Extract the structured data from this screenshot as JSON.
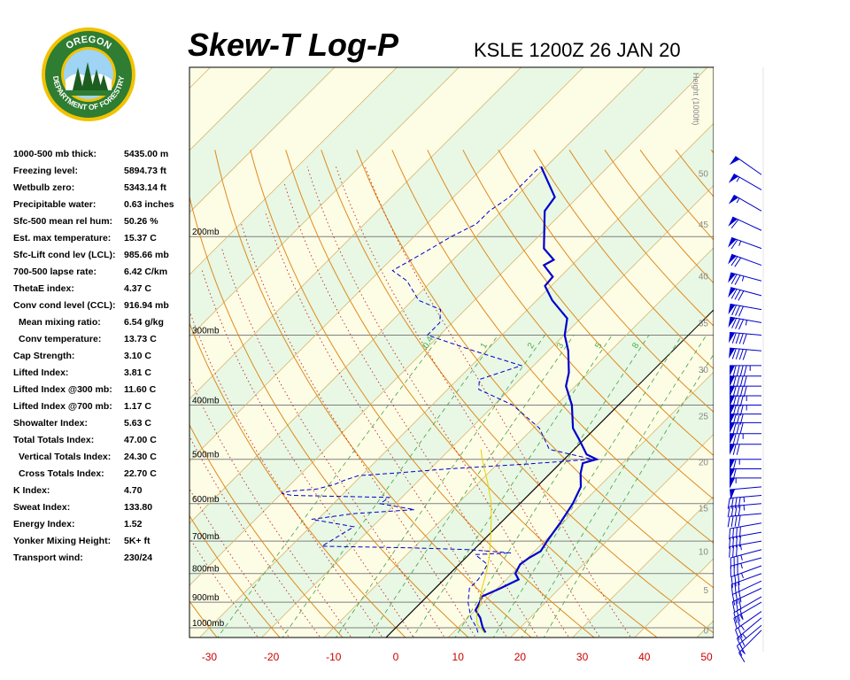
{
  "title": "Skew-T Log-P",
  "station_time": "KSLE 1200Z 26 JAN 20",
  "logo": {
    "text_top": "OREGON",
    "text_bottom": "DEPARTMENT OF FORESTRY",
    "colors": {
      "ring": "#2e7d32",
      "rim": "#f2c200",
      "sky": "#9fd4f5",
      "tree": "#1b5e20"
    }
  },
  "indices": [
    {
      "label": "1000-500 mb thick:",
      "value": "5435.00 m",
      "indent": false
    },
    {
      "label": "Freezing level:",
      "value": "5894.73 ft",
      "indent": false
    },
    {
      "label": "Wetbulb zero:",
      "value": "5343.14 ft",
      "indent": false
    },
    {
      "label": "Precipitable water:",
      "value": "0.63 inches",
      "indent": false
    },
    {
      "label": "Sfc-500 mean rel hum:",
      "value": "50.26 %",
      "indent": false
    },
    {
      "label": "Est. max temperature:",
      "value": "15.37 C",
      "indent": false
    },
    {
      "label": "Sfc-Lift cond lev (LCL):",
      "value": "985.66 mb",
      "indent": false
    },
    {
      "label": "700-500 lapse rate:",
      "value": "6.42 C/km",
      "indent": false
    },
    {
      "label": "ThetaE index:",
      "value": "4.37 C",
      "indent": false
    },
    {
      "label": "Conv cond level (CCL):",
      "value": "916.94 mb",
      "indent": false
    },
    {
      "label": "Mean mixing ratio:",
      "value": "6.54 g/kg",
      "indent": true
    },
    {
      "label": "Conv temperature:",
      "value": "13.73 C",
      "indent": true
    },
    {
      "label": "Cap Strength:",
      "value": "3.10 C",
      "indent": false
    },
    {
      "label": "Lifted Index:",
      "value": "3.81 C",
      "indent": false
    },
    {
      "label": "Lifted Index @300 mb:",
      "value": "11.60 C",
      "indent": false
    },
    {
      "label": "Lifted Index @700 mb:",
      "value": "1.17 C",
      "indent": false
    },
    {
      "label": "Showalter Index:",
      "value": "5.63 C",
      "indent": false
    },
    {
      "label": "Total Totals Index:",
      "value": "47.00 C",
      "indent": false
    },
    {
      "label": "Vertical Totals Index:",
      "value": "24.30 C",
      "indent": true
    },
    {
      "label": "Cross Totals Index:",
      "value": "22.70 C",
      "indent": true
    },
    {
      "label": "K Index:",
      "value": "4.70",
      "indent": false
    },
    {
      "label": "Sweat Index:",
      "value": "133.80",
      "indent": false
    },
    {
      "label": "Energy Index:",
      "value": "1.52",
      "indent": false
    },
    {
      "label": "Yonker Mixing Height:",
      "value": "5K+ ft",
      "indent": false
    },
    {
      "label": "Transport wind:",
      "value": "230/24",
      "indent": false
    }
  ],
  "chart_data": {
    "type": "line",
    "xlabel": "",
    "ylabel": "",
    "x_range": [
      -30,
      50
    ],
    "x_ticks": [
      -30,
      -20,
      -10,
      0,
      10,
      20,
      30,
      40,
      50
    ],
    "pressure_levels": [
      {
        "p": 200,
        "label": "200mb"
      },
      {
        "p": 300,
        "label": "300mb"
      },
      {
        "p": 400,
        "label": "400mb"
      },
      {
        "p": 500,
        "label": "500mb"
      },
      {
        "p": 600,
        "label": "600mb"
      },
      {
        "p": 700,
        "label": "700mb"
      },
      {
        "p": 800,
        "label": "800mb"
      },
      {
        "p": 900,
        "label": "900mb"
      },
      {
        "p": 1000,
        "label": "1000mb"
      }
    ],
    "height_axis": {
      "label": "Height (1000ft)",
      "ticks": [
        {
          "v": 0,
          "p": 1010
        },
        {
          "v": 5,
          "p": 855
        },
        {
          "v": 10,
          "p": 730
        },
        {
          "v": 15,
          "p": 610
        },
        {
          "v": 20,
          "p": 505
        },
        {
          "v": 25,
          "p": 418
        },
        {
          "v": 30,
          "p": 345
        },
        {
          "v": 35,
          "p": 285
        },
        {
          "v": 40,
          "p": 235
        },
        {
          "v": 45,
          "p": 190
        },
        {
          "v": 50,
          "p": 154
        }
      ]
    },
    "mixing_ratio_labels": [
      "0.4",
      "1",
      "2",
      "3",
      "5",
      "8"
    ],
    "series": [
      {
        "role": "temperature",
        "color": "#0000cc",
        "points": [
          [
            1020,
            15.2
          ],
          [
            1000,
            14.0
          ],
          [
            980,
            13.0
          ],
          [
            960,
            12.0
          ],
          [
            930,
            10.0
          ],
          [
            900,
            9.4
          ],
          [
            880,
            8.8
          ],
          [
            850,
            10.5
          ],
          [
            820,
            12.0
          ],
          [
            800,
            10.5
          ],
          [
            770,
            9.8
          ],
          [
            750,
            10.2
          ],
          [
            730,
            11.0
          ],
          [
            700,
            10.4
          ],
          [
            650,
            9.6
          ],
          [
            600,
            8.5
          ],
          [
            560,
            7.1
          ],
          [
            530,
            4.9
          ],
          [
            508,
            3.6
          ],
          [
            500,
            5.2
          ],
          [
            490,
            2.8
          ],
          [
            460,
            -0.9
          ],
          [
            440,
            -3.6
          ],
          [
            400,
            -7.5
          ],
          [
            370,
            -11.5
          ],
          [
            350,
            -13.2
          ],
          [
            320,
            -16.8
          ],
          [
            300,
            -19.9
          ],
          [
            280,
            -22.2
          ],
          [
            260,
            -27.5
          ],
          [
            245,
            -31.0
          ],
          [
            236,
            -31.2
          ],
          [
            225,
            -34.5
          ],
          [
            220,
            -33.8
          ],
          [
            210,
            -37.2
          ],
          [
            180,
            -43.1
          ],
          [
            170,
            -43.7
          ],
          [
            150,
            -50.8
          ]
        ]
      },
      {
        "role": "dewpoint",
        "color": "#0000cc",
        "points": [
          [
            1020,
            14.0
          ],
          [
            1000,
            13.0
          ],
          [
            960,
            10.5
          ],
          [
            900,
            7.5
          ],
          [
            850,
            5.5
          ],
          [
            820,
            5.5
          ],
          [
            790,
            5.0
          ],
          [
            770,
            4.5
          ],
          [
            740,
            1.0
          ],
          [
            735,
            6.5
          ],
          [
            725,
            -1.0
          ],
          [
            720,
            -10.0
          ],
          [
            715,
            -25.0
          ],
          [
            660,
            -23.0
          ],
          [
            640,
            -31.0
          ],
          [
            625,
            -25.0
          ],
          [
            615,
            -16.0
          ],
          [
            600,
            -22.5
          ],
          [
            585,
            -22.0
          ],
          [
            580,
            -38.0
          ],
          [
            575,
            -40.0
          ],
          [
            570,
            -39.0
          ],
          [
            565,
            -35.0
          ],
          [
            555,
            -33.0
          ],
          [
            545,
            -32.0
          ],
          [
            535,
            -30.5
          ],
          [
            528,
            -24.0
          ],
          [
            520,
            -17.0
          ],
          [
            510,
            -5.5
          ],
          [
            500,
            4.5
          ],
          [
            480,
            -4.0
          ],
          [
            440,
            -9.0
          ],
          [
            400,
            -17.0
          ],
          [
            375,
            -25.0
          ],
          [
            360,
            -26.5
          ],
          [
            340,
            -22.0
          ],
          [
            320,
            -32.0
          ],
          [
            300,
            -42.0
          ],
          [
            285,
            -42.0
          ],
          [
            270,
            -44.0
          ],
          [
            260,
            -49.0
          ],
          [
            240,
            -54.0
          ],
          [
            230,
            -58.0
          ],
          [
            215,
            -56.0
          ],
          [
            200,
            -54.0
          ],
          [
            190,
            -52.0
          ],
          [
            180,
            -52.0
          ],
          [
            170,
            -51.0
          ],
          [
            150,
            -51.0
          ]
        ]
      },
      {
        "role": "parcel",
        "color": "#e8d000",
        "points": [
          [
            1020,
            15.0
          ],
          [
            985,
            12.5
          ],
          [
            950,
            11.0
          ],
          [
            900,
            9.5
          ],
          [
            850,
            7.5
          ],
          [
            800,
            5.8
          ],
          [
            750,
            3.8
          ],
          [
            700,
            1.3
          ],
          [
            650,
            -1.5
          ],
          [
            600,
            -4.6
          ],
          [
            550,
            -8.6
          ],
          [
            500,
            -13.2
          ],
          [
            480,
            -15.0
          ]
        ]
      }
    ],
    "wind_barbs": [
      {
        "p": 1010,
        "dir": 225,
        "spd": 15
      },
      {
        "p": 990,
        "dir": 230,
        "spd": 20
      },
      {
        "p": 960,
        "dir": 230,
        "spd": 25
      },
      {
        "p": 935,
        "dir": 235,
        "spd": 25
      },
      {
        "p": 900,
        "dir": 240,
        "spd": 25
      },
      {
        "p": 880,
        "dir": 240,
        "spd": 30
      },
      {
        "p": 850,
        "dir": 245,
        "spd": 30
      },
      {
        "p": 825,
        "dir": 245,
        "spd": 30
      },
      {
        "p": 800,
        "dir": 250,
        "spd": 30
      },
      {
        "p": 775,
        "dir": 250,
        "spd": 35
      },
      {
        "p": 750,
        "dir": 255,
        "spd": 35
      },
      {
        "p": 725,
        "dir": 255,
        "spd": 35
      },
      {
        "p": 700,
        "dir": 260,
        "spd": 35
      },
      {
        "p": 675,
        "dir": 260,
        "spd": 40
      },
      {
        "p": 650,
        "dir": 260,
        "spd": 40
      },
      {
        "p": 625,
        "dir": 265,
        "spd": 40
      },
      {
        "p": 600,
        "dir": 265,
        "spd": 45
      },
      {
        "p": 580,
        "dir": 265,
        "spd": 45
      },
      {
        "p": 560,
        "dir": 265,
        "spd": 50
      },
      {
        "p": 540,
        "dir": 270,
        "spd": 55
      },
      {
        "p": 520,
        "dir": 270,
        "spd": 60
      },
      {
        "p": 500,
        "dir": 270,
        "spd": 65
      },
      {
        "p": 470,
        "dir": 270,
        "spd": 70
      },
      {
        "p": 450,
        "dir": 270,
        "spd": 75
      },
      {
        "p": 430,
        "dir": 270,
        "spd": 80
      },
      {
        "p": 415,
        "dir": 270,
        "spd": 80
      },
      {
        "p": 400,
        "dir": 270,
        "spd": 85
      },
      {
        "p": 385,
        "dir": 270,
        "spd": 85
      },
      {
        "p": 370,
        "dir": 270,
        "spd": 90
      },
      {
        "p": 355,
        "dir": 270,
        "spd": 90
      },
      {
        "p": 340,
        "dir": 270,
        "spd": 95
      },
      {
        "p": 320,
        "dir": 275,
        "spd": 90
      },
      {
        "p": 300,
        "dir": 275,
        "spd": 90
      },
      {
        "p": 285,
        "dir": 280,
        "spd": 85
      },
      {
        "p": 270,
        "dir": 280,
        "spd": 80
      },
      {
        "p": 255,
        "dir": 285,
        "spd": 80
      },
      {
        "p": 240,
        "dir": 285,
        "spd": 75
      },
      {
        "p": 225,
        "dir": 290,
        "spd": 70
      },
      {
        "p": 210,
        "dir": 290,
        "spd": 65
      },
      {
        "p": 195,
        "dir": 295,
        "spd": 60
      },
      {
        "p": 180,
        "dir": 300,
        "spd": 55
      },
      {
        "p": 165,
        "dir": 300,
        "spd": 55
      },
      {
        "p": 155,
        "dir": 305,
        "spd": 50
      }
    ]
  }
}
